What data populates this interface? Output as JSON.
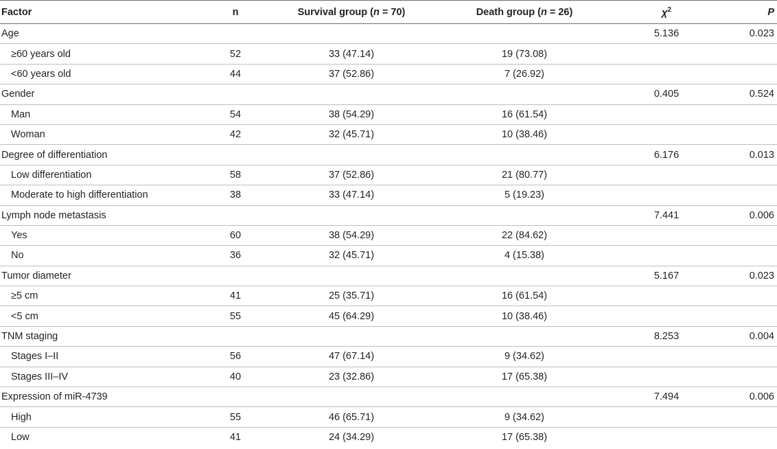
{
  "headers": {
    "factor": "Factor",
    "n": "n",
    "survival_prefix": "Survival group (",
    "survival_n": "n",
    "survival_suffix": " = 70)",
    "death_prefix": "Death group (",
    "death_n": "n",
    "death_suffix": " = 26)",
    "chi_symbol": "χ",
    "chi_sup": "2",
    "p": "P"
  },
  "rows": [
    {
      "factor": "Age",
      "n": "",
      "survival": "",
      "death": "",
      "chi": "5.136",
      "p": "0.023"
    },
    {
      "factor": "≥60 years old",
      "n": "52",
      "survival": "33 (47.14)",
      "death": "19 (73.08)",
      "chi": "",
      "p": ""
    },
    {
      "factor": "<60 years old",
      "n": "44",
      "survival": "37 (52.86)",
      "death": "7 (26.92)",
      "chi": "",
      "p": ""
    },
    {
      "factor": "Gender",
      "n": "",
      "survival": "",
      "death": "",
      "chi": "0.405",
      "p": "0.524"
    },
    {
      "factor": "Man",
      "n": "54",
      "survival": "38 (54.29)",
      "death": "16 (61.54)",
      "chi": "",
      "p": ""
    },
    {
      "factor": "Woman",
      "n": "42",
      "survival": "32 (45.71)",
      "death": "10 (38.46)",
      "chi": "",
      "p": ""
    },
    {
      "factor": "Degree of differentiation",
      "n": "",
      "survival": "",
      "death": "",
      "chi": "6.176",
      "p": "0.013"
    },
    {
      "factor": "Low differentiation",
      "n": "58",
      "survival": "37 (52.86)",
      "death": "21 (80.77)",
      "chi": "",
      "p": ""
    },
    {
      "factor": "Moderate to high differentiation",
      "n": "38",
      "survival": "33 (47.14)",
      "death": "5 (19.23)",
      "chi": "",
      "p": ""
    },
    {
      "factor": "Lymph node metastasis",
      "n": "",
      "survival": "",
      "death": "",
      "chi": "7.441",
      "p": "0.006"
    },
    {
      "factor": "Yes",
      "n": "60",
      "survival": "38 (54.29)",
      "death": "22 (84.62)",
      "chi": "",
      "p": ""
    },
    {
      "factor": "No",
      "n": "36",
      "survival": "32 (45.71)",
      "death": "4 (15.38)",
      "chi": "",
      "p": ""
    },
    {
      "factor": "Tumor diameter",
      "n": "",
      "survival": "",
      "death": "",
      "chi": "5.167",
      "p": "0.023"
    },
    {
      "factor": "≥5 cm",
      "n": "41",
      "survival": "25 (35.71)",
      "death": "16 (61.54)",
      "chi": "",
      "p": ""
    },
    {
      "factor": "<5 cm",
      "n": "55",
      "survival": "45 (64.29)",
      "death": "10 (38.46)",
      "chi": "",
      "p": ""
    },
    {
      "factor": "TNM staging",
      "n": "",
      "survival": "",
      "death": "",
      "chi": "8.253",
      "p": "0.004"
    },
    {
      "factor": "Stages I–II",
      "n": "56",
      "survival": "47 (67.14)",
      "death": "9 (34.62)",
      "chi": "",
      "p": ""
    },
    {
      "factor": "Stages III–IV",
      "n": "40",
      "survival": "23 (32.86)",
      "death": "17 (65.38)",
      "chi": "",
      "p": ""
    },
    {
      "factor": "Expression of miR-4739",
      "n": "",
      "survival": "",
      "death": "",
      "chi": "7.494",
      "p": "0.006"
    },
    {
      "factor": "High",
      "n": "55",
      "survival": "46 (65.71)",
      "death": "9 (34.62)",
      "chi": "",
      "p": ""
    },
    {
      "factor": "Low",
      "n": "41",
      "survival": "24 (34.29)",
      "death": "17 (65.38)",
      "chi": "",
      "p": ""
    }
  ]
}
